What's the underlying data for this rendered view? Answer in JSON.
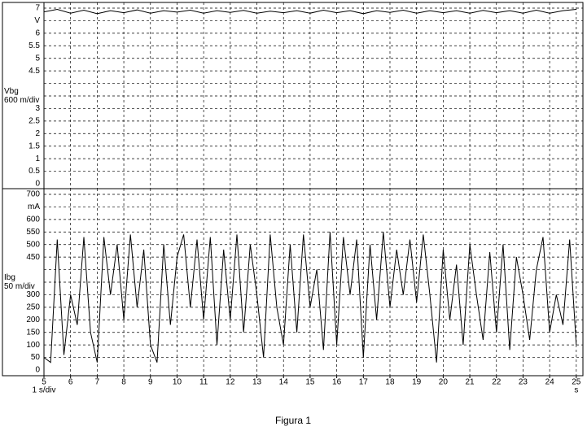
{
  "chart_data": [
    {
      "type": "line",
      "ylabel": [
        "Vbg",
        "600 m/div"
      ],
      "ylim": [
        0,
        7
      ],
      "yticks": [
        0,
        0.5,
        1,
        1.5,
        2,
        2.5,
        3,
        4.5,
        5,
        5.5,
        6,
        {
          "value": 6.5,
          "label": "V"
        },
        7
      ],
      "grid_step": 0.5,
      "xlim": [
        5,
        25.25
      ],
      "xgrid_step": 1,
      "color": "#000000",
      "x": [
        5,
        5.5,
        6,
        6.5,
        7,
        7.5,
        8,
        8.5,
        9,
        9.5,
        10,
        10.5,
        11,
        11.5,
        12,
        12.5,
        13,
        13.5,
        14,
        14.5,
        15,
        15.5,
        16,
        16.5,
        17,
        17.5,
        18,
        18.5,
        19,
        19.5,
        20,
        20.5,
        21,
        21.5,
        22,
        22.5,
        23,
        23.5,
        24,
        24.5,
        25
      ],
      "values": [
        6.85,
        6.95,
        6.8,
        6.92,
        6.78,
        6.9,
        6.82,
        6.93,
        6.8,
        6.9,
        6.84,
        6.92,
        6.8,
        6.9,
        6.83,
        6.91,
        6.8,
        6.88,
        6.82,
        6.9,
        6.8,
        6.92,
        6.82,
        6.9,
        6.78,
        6.9,
        6.83,
        6.92,
        6.8,
        6.9,
        6.82,
        6.9,
        6.8,
        6.91,
        6.82,
        6.9,
        6.8,
        6.92,
        6.8,
        6.9,
        6.95
      ]
    },
    {
      "type": "line",
      "ylabel": [
        "Ibg",
        "50 m/div"
      ],
      "xlabel": "1 s/div",
      "xunit": "s",
      "ylim": [
        0,
        700
      ],
      "yticks": [
        0,
        50,
        100,
        150,
        200,
        250,
        300,
        450,
        500,
        550,
        600,
        {
          "value": 650,
          "label": "mA"
        },
        700
      ],
      "grid_step": 50,
      "xlim": [
        5,
        25.25
      ],
      "xticks": [
        5,
        6,
        7,
        8,
        9,
        10,
        11,
        12,
        13,
        14,
        15,
        16,
        17,
        18,
        19,
        20,
        21,
        22,
        23,
        24,
        25
      ],
      "color": "#000000",
      "x": [
        5,
        5.25,
        5.5,
        5.75,
        6,
        6.25,
        6.5,
        6.75,
        7,
        7.25,
        7.5,
        7.75,
        8,
        8.25,
        8.5,
        8.75,
        9,
        9.25,
        9.5,
        9.75,
        10,
        10.25,
        10.5,
        10.75,
        11,
        11.25,
        11.5,
        11.75,
        12,
        12.25,
        12.5,
        12.75,
        13,
        13.25,
        13.5,
        13.75,
        14,
        14.25,
        14.5,
        14.75,
        15,
        15.25,
        15.5,
        15.75,
        16,
        16.25,
        16.5,
        16.75,
        17,
        17.25,
        17.5,
        17.75,
        18,
        18.25,
        18.5,
        18.75,
        19,
        19.25,
        19.5,
        19.75,
        20,
        20.25,
        20.5,
        20.75,
        21,
        21.25,
        21.5,
        21.75,
        22,
        22.25,
        22.5,
        22.75,
        23,
        23.25,
        23.5,
        23.75,
        24,
        24.25,
        24.5,
        24.75,
        25
      ],
      "values": [
        50,
        30,
        520,
        60,
        300,
        180,
        530,
        150,
        30,
        530,
        300,
        500,
        200,
        540,
        250,
        480,
        100,
        30,
        500,
        180,
        450,
        540,
        250,
        520,
        200,
        530,
        100,
        480,
        200,
        540,
        150,
        500,
        300,
        50,
        540,
        250,
        100,
        500,
        150,
        540,
        250,
        400,
        80,
        550,
        100,
        530,
        300,
        520,
        50,
        500,
        200,
        550,
        250,
        480,
        300,
        520,
        270,
        540,
        300,
        30,
        480,
        200,
        420,
        100,
        500,
        300,
        120,
        470,
        150,
        500,
        80,
        450,
        300,
        120,
        400,
        530,
        150,
        300,
        180,
        520,
        100
      ]
    }
  ],
  "caption": "Figura 1"
}
